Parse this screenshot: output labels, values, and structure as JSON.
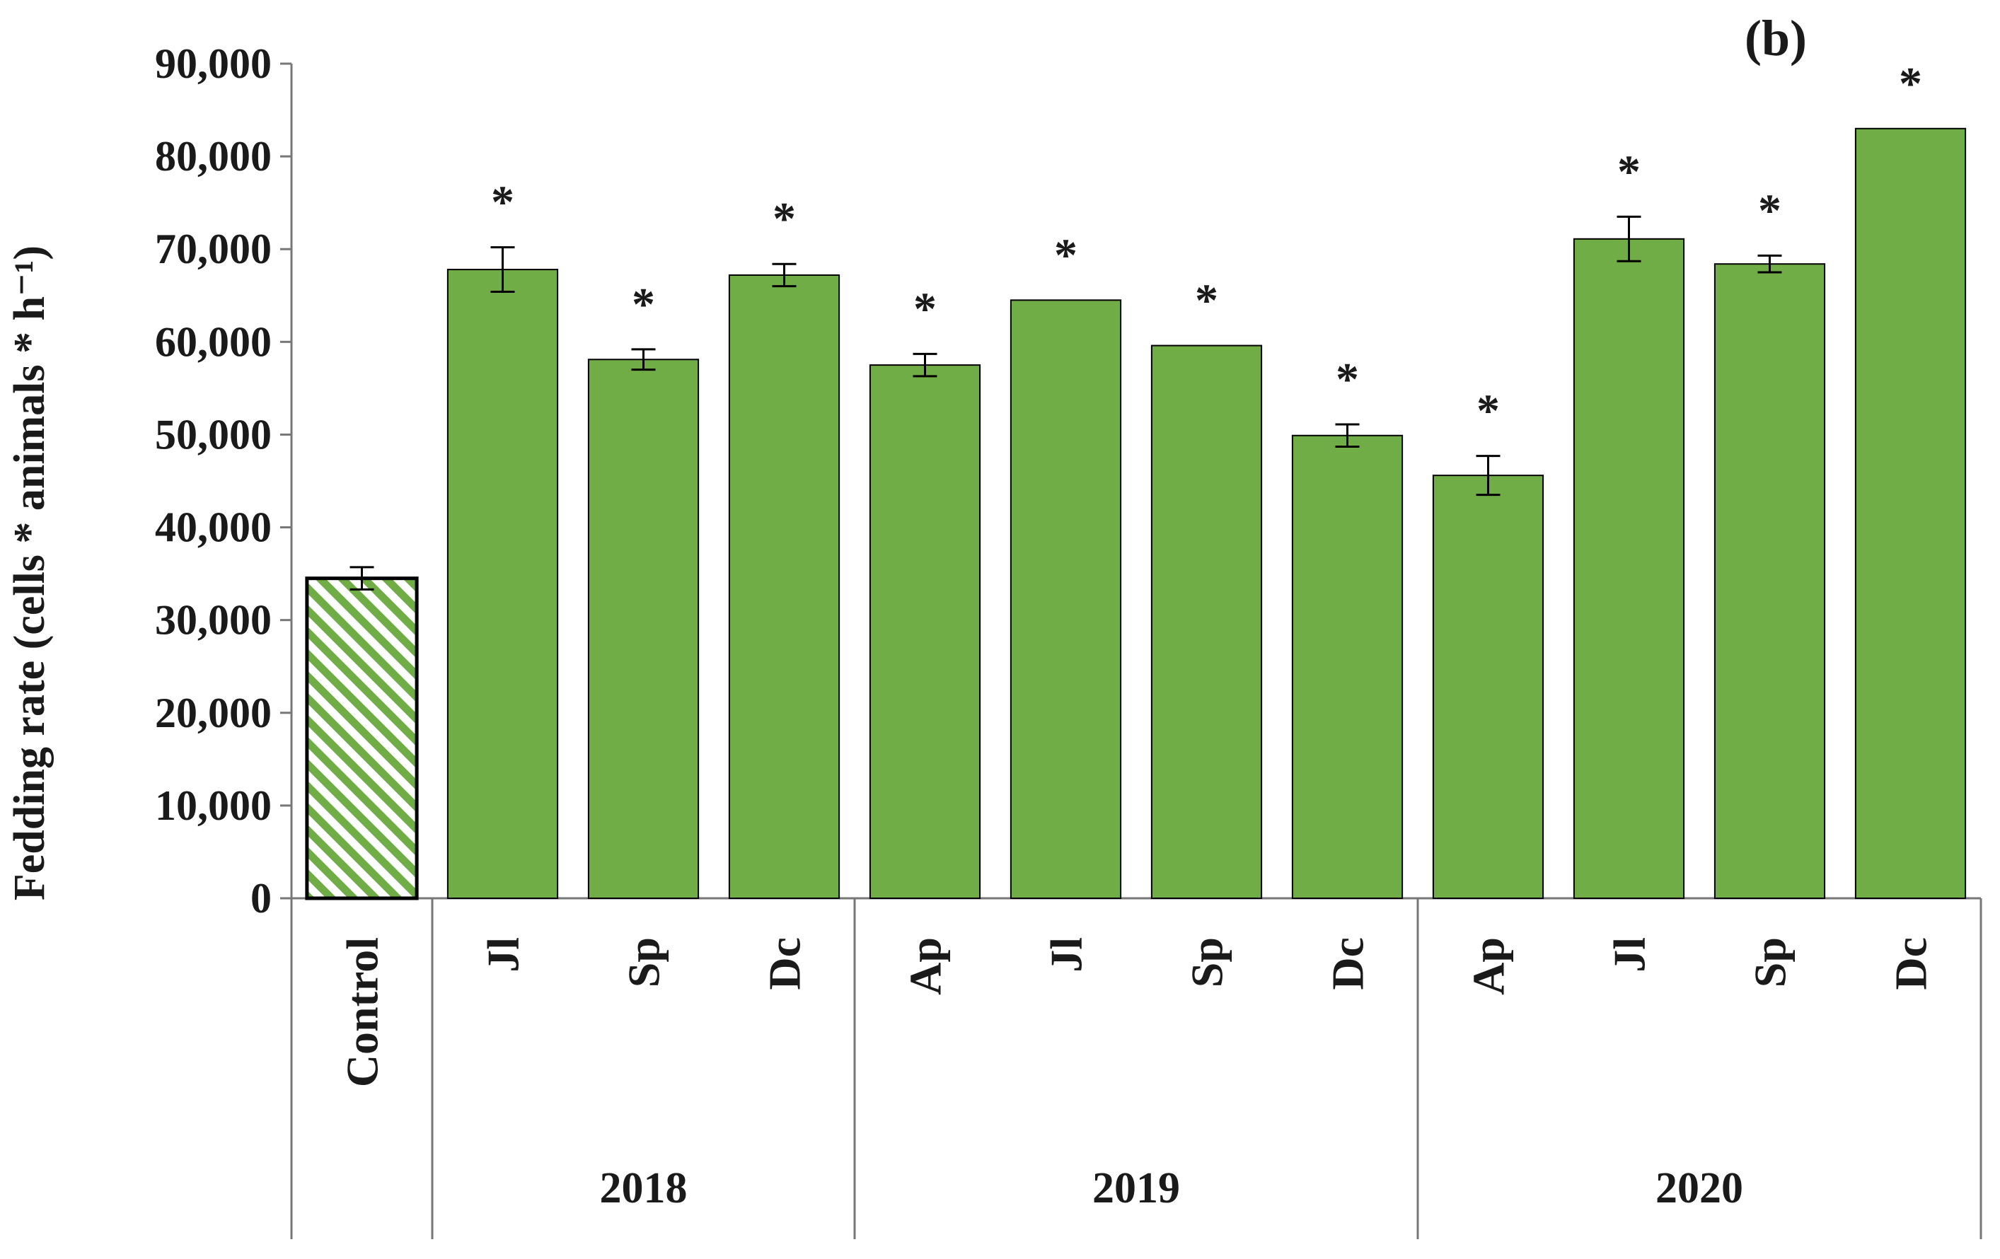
{
  "panel_label": "(b)",
  "colors": {
    "bar": "#70AD47",
    "stroke": "#000000",
    "hatch": "#70AD47",
    "text": "#1a1a1a"
  },
  "chart_data": {
    "type": "bar",
    "ylabel": "Fedding rate (cells * animals * h⁻¹)",
    "xlabel": "",
    "ylim": [
      0,
      90000
    ],
    "yticks": [
      0,
      10000,
      20000,
      30000,
      40000,
      50000,
      60000,
      70000,
      80000,
      90000
    ],
    "ytick_labels": [
      "0",
      "10,000",
      "20,000",
      "30,000",
      "40,000",
      "50,000",
      "60,000",
      "70,000",
      "80,000",
      "90,000"
    ],
    "grid": false,
    "categories": [
      "Control",
      "Jl",
      "Sp",
      "Dc",
      "Ap",
      "Jl",
      "Sp",
      "Dc",
      "Ap",
      "Jl",
      "Sp",
      "Dc"
    ],
    "groups": [
      {
        "label": "",
        "count": 1
      },
      {
        "label": "2018",
        "count": 3
      },
      {
        "label": "2019",
        "count": 4
      },
      {
        "label": "2020",
        "count": 4
      }
    ],
    "values": [
      34500,
      67800,
      58100,
      67200,
      57500,
      64500,
      59600,
      49900,
      45600,
      71100,
      68400,
      83000
    ],
    "errors": [
      1200,
      2400,
      1100,
      1200,
      1200,
      null,
      null,
      1200,
      2100,
      2400,
      900,
      null
    ],
    "significant": [
      false,
      true,
      true,
      true,
      true,
      true,
      true,
      true,
      true,
      true,
      true,
      true
    ],
    "significance_marker": "*",
    "control_pattern": "hatched"
  }
}
